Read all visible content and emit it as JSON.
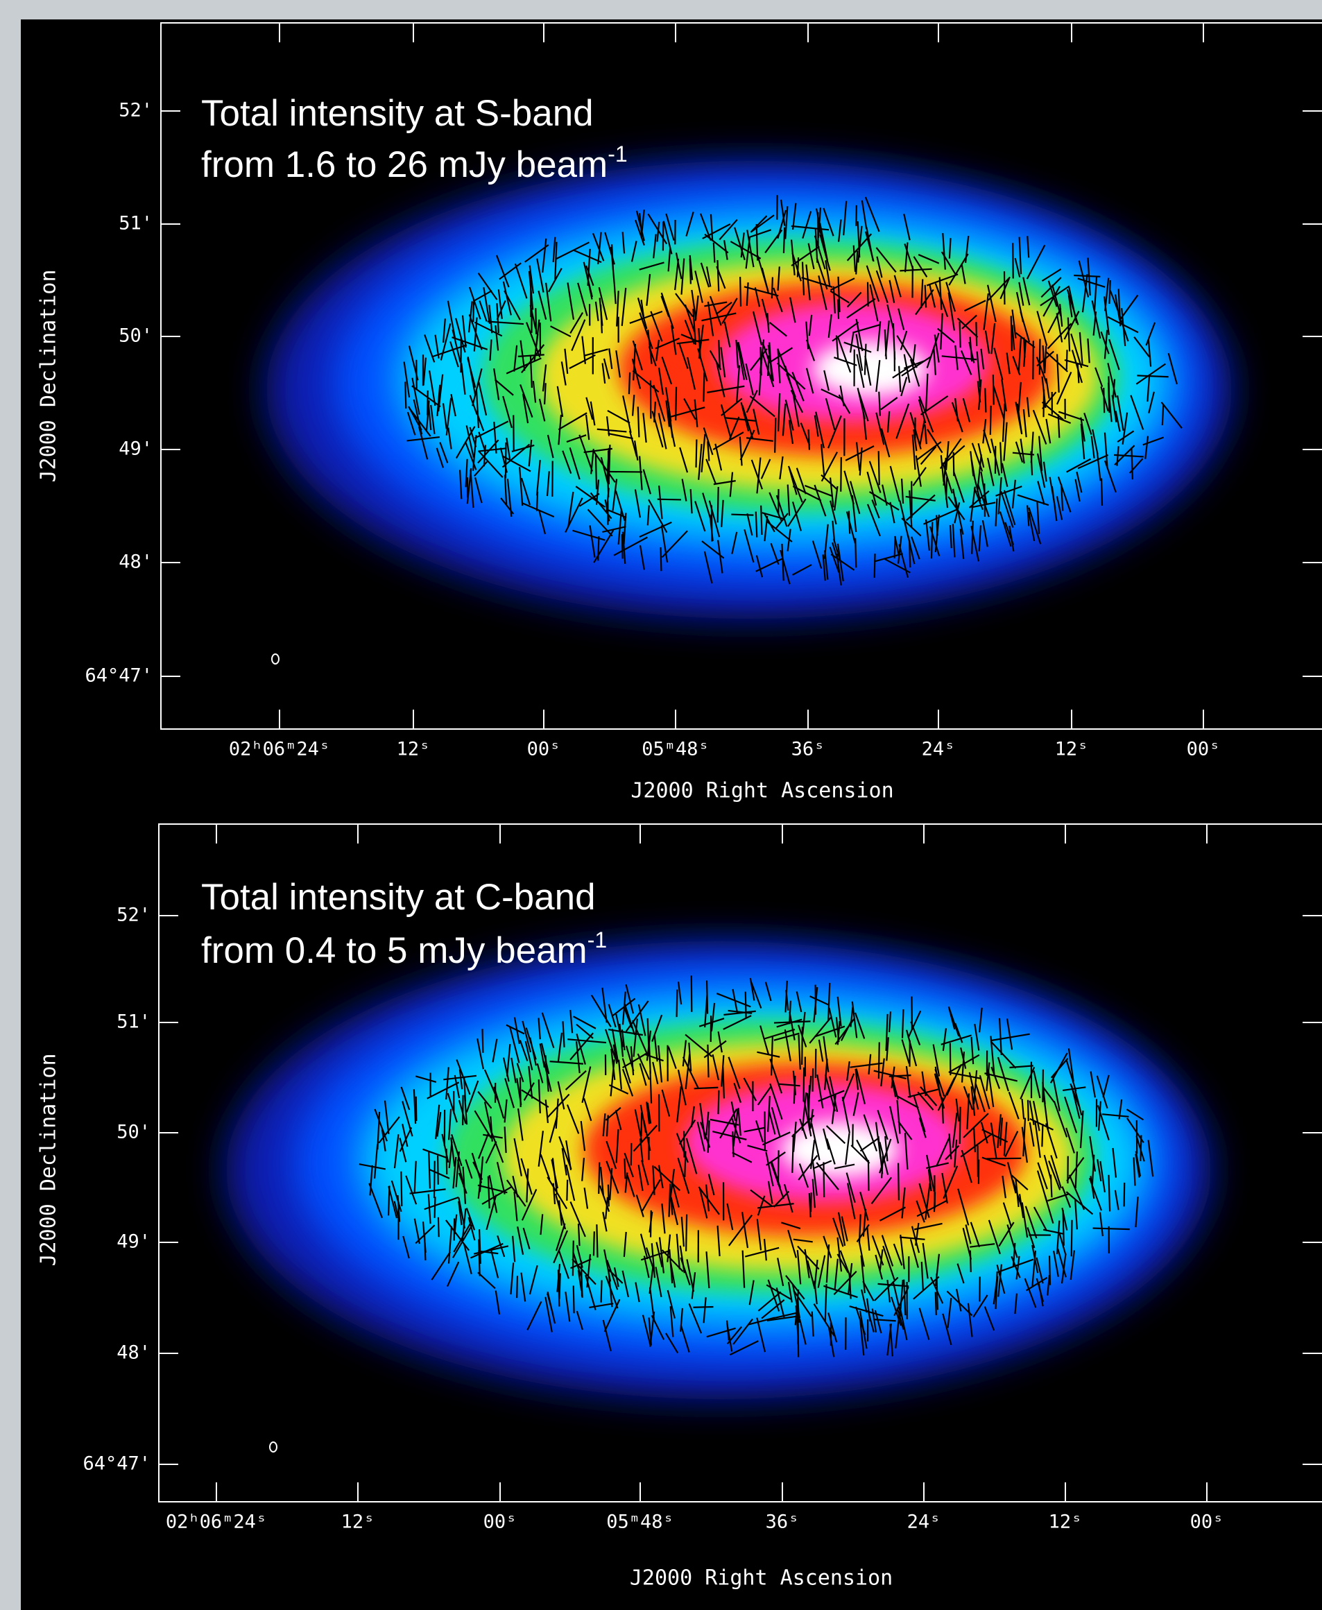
{
  "panels": [
    {
      "annotation": {
        "line1": "Total intensity at S-band",
        "line2": "from 1.6 to 26 mJy beam",
        "superscript": "-1"
      },
      "x_label": "J2000 Right Ascension",
      "y_label": "J2000 Declination",
      "x_tick_labels": [
        "02ʰ06ᵐ24ˢ",
        "12ˢ",
        "00ˢ",
        "05ᵐ48ˢ",
        "36ˢ",
        "24ˢ",
        "12ˢ",
        "00ˢ"
      ],
      "y_tick_labels": [
        "52'",
        "51'",
        "50'",
        "49'",
        "48'",
        "64°47'"
      ]
    },
    {
      "annotation": {
        "line1": "Total intensity at C-band",
        "line2": "from 0.4 to 5 mJy beam",
        "superscript": "-1"
      },
      "x_label": "J2000 Right Ascension",
      "y_label": "J2000 Declination",
      "x_tick_labels": [
        "02ʰ06ᵐ24ˢ",
        "12ˢ",
        "00ˢ",
        "05ᵐ48ˢ",
        "36ˢ",
        "24ˢ",
        "12ˢ",
        "00ˢ"
      ],
      "y_tick_labels": [
        "52'",
        "51'",
        "50'",
        "49'",
        "48'",
        "64°47'"
      ]
    }
  ]
}
